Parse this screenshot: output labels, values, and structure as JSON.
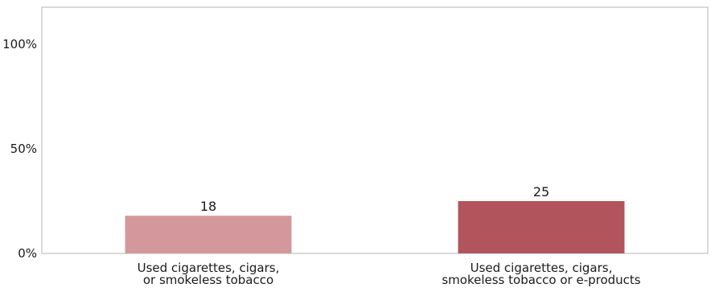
{
  "chart_data": {
    "type": "bar",
    "categories": [
      [
        "Used cigarettes, cigars,",
        "or smokeless tobacco"
      ],
      [
        "Used cigarettes, cigars,",
        "smokeless tobacco or e-products"
      ]
    ],
    "values": [
      18,
      25
    ],
    "data_labels": [
      "18",
      "25"
    ],
    "colors": [
      "#d4989c",
      "#b2545c"
    ],
    "ylim": [
      0,
      100
    ],
    "yticks": [
      0,
      50,
      100
    ],
    "ytick_labels": [
      "0%",
      "50%",
      "100%"
    ],
    "title": "",
    "xlabel": "",
    "ylabel": "",
    "grid": false,
    "legend": "none"
  }
}
